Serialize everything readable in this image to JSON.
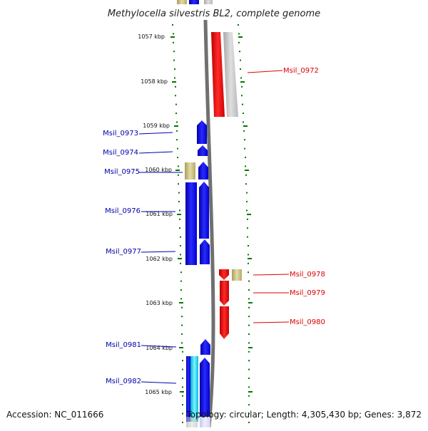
{
  "title": "Methylocella silvestris BL2, complete genome",
  "accession_label": "Accession: NC_011666",
  "summary_label": "Topology: circular; Length: 4,305,430 bp; Genes: 3,872",
  "ticks": [
    "1057 kbp",
    "1058 kbp",
    "1059 kbp",
    "1060 kbp",
    "1061 kbp",
    "1062 kbp",
    "1063 kbp",
    "1064 kbp",
    "1065 kbp"
  ],
  "colors": {
    "forward": "#0000ee",
    "reverse": "#ee0000",
    "label_forward": "#0000aa",
    "label_reverse": "#dd0000",
    "other_gene": "#c8c08a",
    "backbone": "#808080",
    "tick": "#007700",
    "cyan_gene": "#00ddff"
  },
  "labels": {
    "forward": [
      "Msil_0973",
      "Msil_0974",
      "Msil_0975",
      "Msil_0976",
      "Msil_0977",
      "Msil_0981",
      "Msil_0982"
    ],
    "reverse": [
      "Msil_0972",
      "Msil_0978",
      "Msil_0979",
      "Msil_0980"
    ]
  }
}
